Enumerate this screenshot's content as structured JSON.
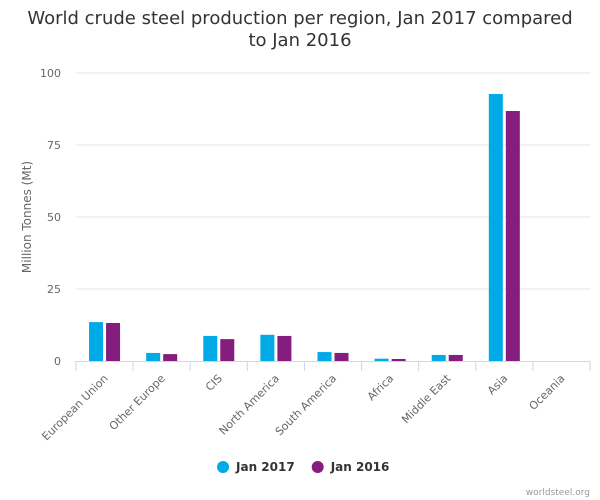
{
  "chart_data": {
    "type": "bar",
    "title_lines": [
      "World crude steel production per region, Jan 2017 compared",
      "to Jan 2016"
    ],
    "ylabel": "Million Tonnes (Mt)",
    "ylim": [
      0,
      100
    ],
    "yticks": [
      0,
      25,
      50,
      75,
      100
    ],
    "grid": true,
    "legend_placement": "bottom",
    "categories": [
      "European Union",
      "Other Europe",
      "CIS",
      "North America",
      "South America",
      "Africa",
      "Middle East",
      "Asia",
      "Oceania"
    ],
    "series": [
      {
        "name": "Jan 2017",
        "color": "#00aae6",
        "values": [
          13.5,
          2.8,
          8.7,
          9.1,
          3.1,
          0.8,
          2.1,
          92.7,
          0
        ]
      },
      {
        "name": "Jan 2016",
        "color": "#851d7e",
        "values": [
          13.2,
          2.4,
          7.6,
          8.7,
          2.8,
          0.7,
          2.1,
          86.8,
          0
        ]
      }
    ]
  },
  "credit": "worldsteel.org"
}
